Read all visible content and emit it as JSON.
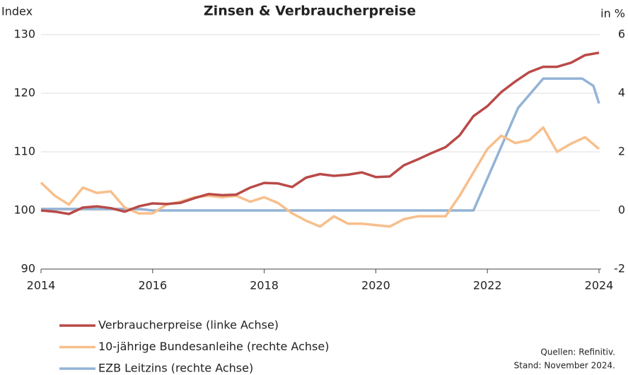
{
  "chart_data": {
    "type": "line",
    "title": "Zinsen & Verbraucherpreise",
    "y_label": "Index",
    "y2_label": "in %",
    "x": [
      2014,
      2014.25,
      2014.5,
      2014.75,
      2015,
      2015.25,
      2015.5,
      2015.75,
      2016,
      2016.25,
      2016.5,
      2016.75,
      2017,
      2017.25,
      2017.5,
      2017.75,
      2018,
      2018.25,
      2018.5,
      2018.75,
      2019,
      2019.25,
      2019.5,
      2019.75,
      2020,
      2020.25,
      2020.5,
      2020.75,
      2021,
      2021.25,
      2021.5,
      2021.75,
      2022,
      2022.25,
      2022.5,
      2022.75,
      2023,
      2023.25,
      2023.5,
      2023.75,
      2024
    ],
    "series": [
      {
        "name": "Verbraucherpreise (linke Achse)",
        "color": "#b94a48",
        "axis": "y",
        "values": [
          100.0,
          99.8,
          99.4,
          100.5,
          100.7,
          100.4,
          99.8,
          100.7,
          101.2,
          101.1,
          101.3,
          102.1,
          102.8,
          102.6,
          102.7,
          103.9,
          104.7,
          104.6,
          104.0,
          105.6,
          106.2,
          105.9,
          106.1,
          106.5,
          105.7,
          105.8,
          107.7,
          108.7,
          109.8,
          110.8,
          112.8,
          116.1,
          117.8,
          120.2,
          122.0,
          123.6,
          124.5,
          124.5,
          125.2,
          126.5,
          126.9
        ]
      },
      {
        "name": "10-jährige Bundesanleihe (rechte Achse)",
        "color": "#f7bf8c",
        "axis": "y2",
        "values": [
          0.95,
          0.5,
          0.2,
          0.78,
          0.6,
          0.65,
          0.1,
          -0.1,
          -0.1,
          0.2,
          0.3,
          0.45,
          0.5,
          0.45,
          0.5,
          0.3,
          0.45,
          0.25,
          -0.1,
          -0.35,
          -0.55,
          -0.2,
          -0.45,
          -0.45,
          -0.5,
          -0.55,
          -0.3,
          -0.2,
          -0.2,
          -0.2,
          0.5,
          1.3,
          2.1,
          2.55,
          2.3,
          2.4,
          2.83,
          2.0,
          2.28,
          2.5,
          2.1
        ]
      },
      {
        "name": "EZB Leitzins (rechte Achse)",
        "color": "#94b3d6",
        "axis": "y2",
        "x": [
          2014,
          2015.75,
          2016,
          2021.75,
          2022.55,
          2023,
          2023.7,
          2023.9,
          2024
        ],
        "values": [
          0.05,
          0.05,
          0,
          0,
          3.5,
          4.5,
          4.5,
          4.25,
          3.65
        ]
      }
    ],
    "xlim": [
      2014,
      2024
    ],
    "xticks": [
      2014,
      2016,
      2018,
      2020,
      2022,
      2024
    ],
    "ylim": [
      90,
      130
    ],
    "yticks": [
      90,
      100,
      110,
      120,
      130
    ],
    "y2lim": [
      -2,
      6
    ],
    "y2ticks": [
      -2,
      0,
      2,
      4,
      6
    ],
    "grid": true,
    "source": [
      "Quellen: Refinitiv.",
      "Stand: November 2024."
    ]
  }
}
